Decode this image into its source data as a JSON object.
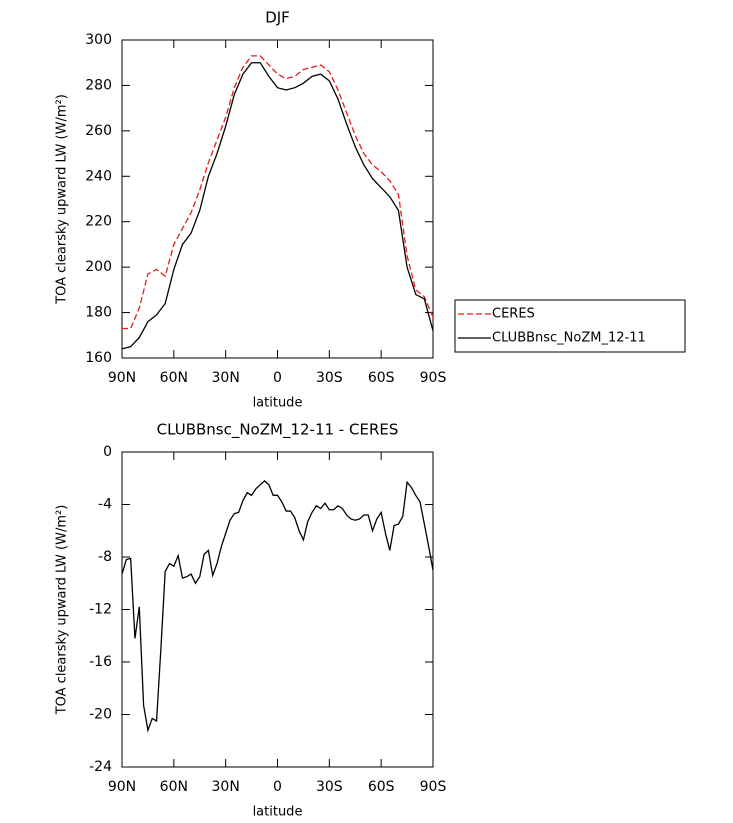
{
  "chart_data": [
    {
      "type": "line",
      "title": "DJF",
      "xlabel": "latitude",
      "ylabel": "TOA clearsky upward LW (W/m²)",
      "x": [
        90,
        85,
        80,
        75,
        70,
        65,
        60,
        55,
        50,
        45,
        40,
        35,
        30,
        25,
        20,
        15,
        10,
        5,
        0,
        -5,
        -10,
        -15,
        -20,
        -25,
        -30,
        -35,
        -40,
        -45,
        -50,
        -55,
        -60,
        -65,
        -70,
        -75,
        -80,
        -85,
        -90
      ],
      "series": [
        {
          "name": "CERES",
          "color": "#e41a1c",
          "dash": true,
          "values": [
            173,
            173,
            182,
            197,
            199,
            196,
            210,
            217,
            224,
            234,
            246,
            256,
            266,
            279,
            288,
            293,
            293,
            289,
            285,
            283,
            284,
            287,
            288,
            289,
            286,
            278,
            268,
            258,
            250,
            245,
            242,
            238,
            232,
            205,
            190,
            187,
            178
          ]
        },
        {
          "name": "CLUBBnsc_NoZM_12-11",
          "color": "#000000",
          "dash": false,
          "values": [
            164,
            165,
            169,
            176,
            179,
            184,
            199,
            210,
            215,
            225,
            240,
            250,
            262,
            276,
            285,
            290,
            290,
            284,
            279,
            278,
            279,
            281,
            284,
            285,
            282,
            274,
            263,
            253,
            245,
            239,
            235,
            231,
            225,
            200,
            188,
            186,
            172
          ]
        }
      ],
      "xlim": [
        90,
        -90
      ],
      "xticks": [
        {
          "value": 90,
          "label": "90N"
        },
        {
          "value": 60,
          "label": "60N"
        },
        {
          "value": 30,
          "label": "30N"
        },
        0,
        {
          "value": -30,
          "label": "30S"
        },
        {
          "value": -60,
          "label": "60S"
        },
        {
          "value": -90,
          "label": "90S"
        }
      ],
      "ylim": [
        160,
        300
      ],
      "yticks": [
        160,
        180,
        200,
        220,
        240,
        260,
        280,
        300
      ],
      "legend": "right"
    },
    {
      "type": "line",
      "title": "CLUBBnsc_NoZM_12-11 - CERES",
      "xlabel": "latitude",
      "ylabel": "TOA clearsky upward LW (W/m²)",
      "x": [
        90,
        87.5,
        85,
        82.5,
        80,
        77.5,
        75,
        72.5,
        70,
        67.5,
        65,
        62.5,
        60,
        57.5,
        55,
        52.5,
        50,
        47.5,
        45,
        42.5,
        40,
        37.5,
        35,
        32.5,
        30,
        27.5,
        25,
        22.5,
        20,
        17.5,
        15,
        12.5,
        10,
        7.5,
        5,
        2.5,
        0,
        -2.5,
        -5,
        -7.5,
        -10,
        -12.5,
        -15,
        -17.5,
        -20,
        -22.5,
        -25,
        -27.5,
        -30,
        -32.5,
        -35,
        -37.5,
        -40,
        -42.5,
        -45,
        -47.5,
        -50,
        -52.5,
        -55,
        -57.5,
        -60,
        -62.5,
        -65,
        -67.5,
        -70,
        -72.5,
        -75,
        -77.5,
        -80,
        -82.5,
        -85,
        -87.5,
        -90
      ],
      "values": [
        -9.3,
        -8.2,
        -8.1,
        -14.2,
        -11.8,
        -19.3,
        -21.2,
        -20.3,
        -20.5,
        -15,
        -9.1,
        -8.5,
        -8.7,
        -7.9,
        -9.6,
        -9.5,
        -9.3,
        -10,
        -9.5,
        -7.8,
        -7.5,
        -9.4,
        -8.5,
        -7.2,
        -6.2,
        -5.2,
        -4.7,
        -4.6,
        -3.7,
        -3.1,
        -3.3,
        -2.8,
        -2.5,
        -2.2,
        -2.5,
        -3.3,
        -3.3,
        -3.8,
        -4.5,
        -4.5,
        -5,
        -6,
        -6.7,
        -5.3,
        -4.6,
        -4.1,
        -4.3,
        -3.9,
        -4.4,
        -4.4,
        -4.1,
        -4.3,
        -4.8,
        -5.1,
        -5.2,
        -5.1,
        -4.8,
        -4.8,
        -6,
        -5.1,
        -4.6,
        -6.2,
        -7.5,
        -5.6,
        -5.5,
        -4.9,
        -2.3,
        -2.7,
        -3.3,
        -3.8,
        -5.5,
        -7.2,
        -9.0
      ],
      "color": "#000000",
      "xlim": [
        90,
        -90
      ],
      "xticks": [
        {
          "value": 90,
          "label": "90N"
        },
        {
          "value": 60,
          "label": "60N"
        },
        {
          "value": 30,
          "label": "30N"
        },
        0,
        {
          "value": -30,
          "label": "30S"
        },
        {
          "value": -60,
          "label": "60S"
        },
        {
          "value": -90,
          "label": "90S"
        }
      ],
      "ylim": [
        -24,
        0
      ],
      "yticks": [
        -24,
        -20,
        -16,
        -12,
        -8,
        -4,
        0
      ]
    }
  ]
}
